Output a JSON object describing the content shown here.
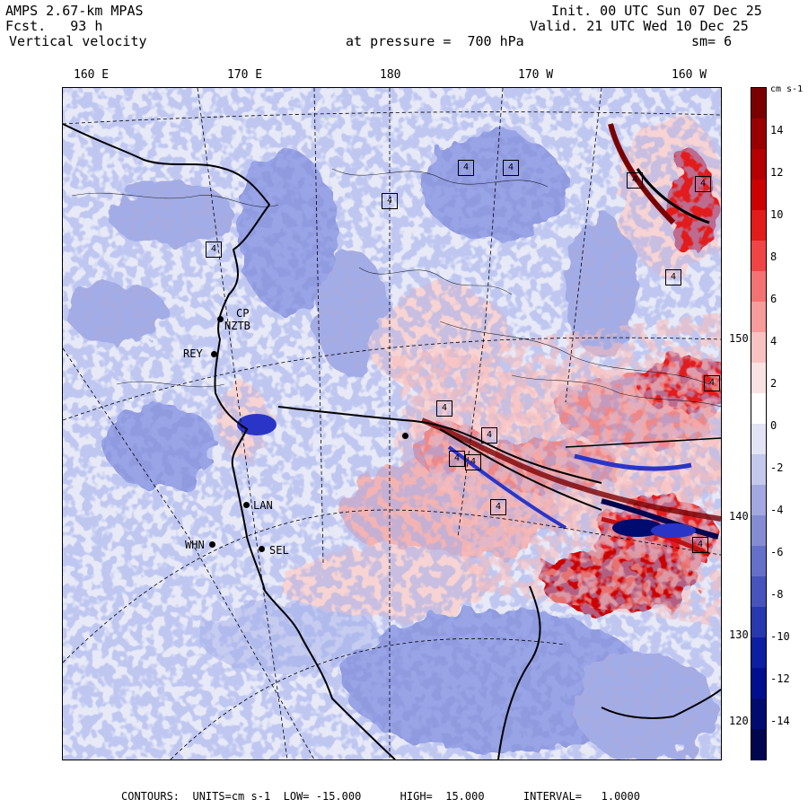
{
  "header": {
    "model": "AMPS 2.67-km MPAS",
    "fcst": "Fcst.   93 h",
    "field": "Vertical velocity",
    "init": "Init. 00 UTC Sun 07 Dec 25",
    "valid": "Valid. 21 UTC Wed 10 Dec 25",
    "level": "at pressure =  700 hPa",
    "smooth": "sm= 6"
  },
  "lon_labels": [
    "160 E",
    "170 E",
    "180",
    "170 W",
    "160 W"
  ],
  "lat_labels": [
    "150 W",
    "140 W",
    "130 W",
    "120 W"
  ],
  "stations": [
    "CP",
    "NZTB",
    "REY",
    "LAN",
    "WHN",
    "SEL"
  ],
  "contour_box_labels": [
    "4",
    "4",
    "4",
    "4",
    "4",
    "4",
    "4",
    "4",
    "4",
    "4",
    "4",
    "4",
    "4",
    "4"
  ],
  "colorbar": {
    "unit": "cm s-1",
    "ticks": [
      "14",
      "12",
      "10",
      "8",
      "6",
      "4",
      "2",
      "0",
      "-2",
      "-4",
      "-6",
      "-8",
      "-10",
      "-12",
      "-14"
    ],
    "colors": [
      "#7a0000",
      "#9b0000",
      "#b40000",
      "#cd0000",
      "#e21b1b",
      "#f04545",
      "#f57272",
      "#f79b9b",
      "#f9c2c2",
      "#fbe2e2",
      "#ffffff",
      "#e2e4f5",
      "#c4c8ec",
      "#a3a9e0",
      "#848cd4",
      "#6570c8",
      "#4654bb",
      "#2838ae",
      "#0c1ea1",
      "#000f8f",
      "#000b70",
      "#000650"
    ]
  },
  "footer": {
    "text": "CONTOURS:  UNITS=cm s-1  LOW= -15.000      HIGH=  15.000      INTERVAL=   1.0000"
  },
  "map": {
    "palette": {
      "background": "#e7e9f7",
      "light_blue": "#c5cbef",
      "mid_blue": "#8c96de",
      "dark_blue": "#2a35c8",
      "light_red": "#f7d3d3",
      "mid_red": "#ee8787",
      "dark_red": "#c20f0f",
      "deep_red": "#7a0000"
    }
  }
}
